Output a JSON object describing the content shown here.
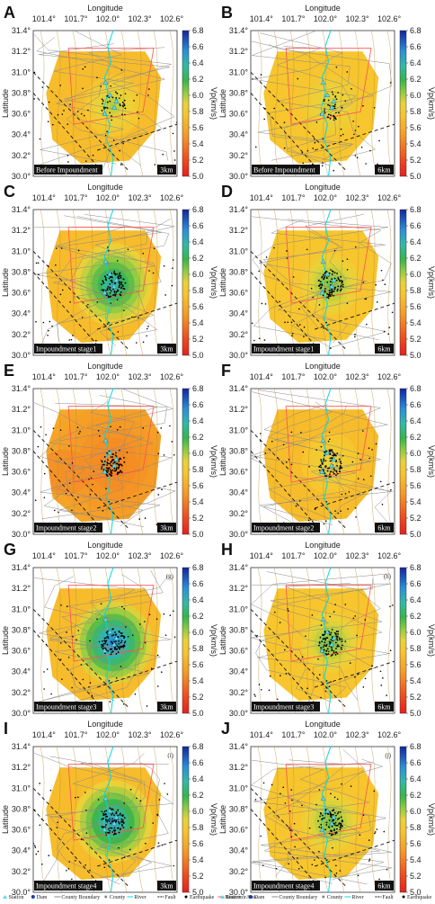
{
  "figure": {
    "x_axis_title": "Longitude",
    "y_axis_title": "Latitude",
    "colorbar_title": "Vp(km/s)",
    "colorbar_ticks": [
      "6.8",
      "6.6",
      "6.4",
      "6.2",
      "6.0",
      "5.8",
      "5.6",
      "5.4",
      "5.2",
      "5.0"
    ],
    "lon_ticks": [
      "101.4°",
      "101.7°",
      "102.0°",
      "102.3°",
      "102.6°"
    ],
    "lat_ticks": [
      "31.4°",
      "31.2°",
      "31.0°",
      "30.8°",
      "30.6°",
      "30.4°",
      "30.2°",
      "30.0°"
    ],
    "colors": {
      "low": "#e82020",
      "mid": "#f5c232",
      "green": "#35b34a",
      "high": "#1030a8",
      "river": "#00d8e8",
      "reservoir": "#ff5050"
    }
  },
  "panels": [
    {
      "letter": "A",
      "label": "Before Impoundment",
      "depth": "3km",
      "tag": ""
    },
    {
      "letter": "B",
      "label": "Before Impoundment",
      "depth": "6km",
      "tag": ""
    },
    {
      "letter": "C",
      "label": "Impoundment stage1",
      "depth": "3km",
      "tag": ""
    },
    {
      "letter": "D",
      "label": "Impoundment stage1",
      "depth": "6km",
      "tag": ""
    },
    {
      "letter": "E",
      "label": "Impoundment stage2",
      "depth": "3km",
      "tag": ""
    },
    {
      "letter": "F",
      "label": "Impoundment stage2",
      "depth": "6km",
      "tag": ""
    },
    {
      "letter": "G",
      "label": "Impoundment stage3",
      "depth": "3km",
      "tag": "(g)"
    },
    {
      "letter": "H",
      "label": "Impoundment stage3",
      "depth": "6km",
      "tag": "(h)"
    },
    {
      "letter": "I",
      "label": "Impoundment stage4",
      "depth": "3km",
      "tag": "(i)"
    },
    {
      "letter": "J",
      "label": "Impoundment stage4",
      "depth": "6km",
      "tag": "(j)"
    }
  ],
  "legend": [
    {
      "symbol": "triangle",
      "text": "Station"
    },
    {
      "symbol": "star",
      "text": "Dam"
    },
    {
      "symbol": "line-gray",
      "text": "County Boundary"
    },
    {
      "symbol": "dot-gray",
      "text": "County"
    },
    {
      "symbol": "line-cyan",
      "text": "River"
    },
    {
      "symbol": "line-dash",
      "text": "Fault"
    },
    {
      "symbol": "dot-black",
      "text": "Earthquake"
    },
    {
      "symbol": "line-red",
      "text": "ReservoirArea"
    }
  ],
  "chart_data": {
    "type": "heatmap",
    "title": "",
    "xlabel": "Longitude",
    "ylabel": "Latitude",
    "xlim": [
      101.3,
      102.65
    ],
    "ylim": [
      30.0,
      31.4
    ],
    "colorbar": {
      "label": "Vp(km/s)",
      "range": [
        5.0,
        6.8
      ]
    },
    "maps": [
      {
        "panel": "A",
        "stage": "Before Impoundment",
        "depth_km": 3,
        "background_vp": 5.7,
        "anomaly_vp": 6.0
      },
      {
        "panel": "B",
        "stage": "Before Impoundment",
        "depth_km": 6,
        "background_vp": 5.75,
        "anomaly_vp": 5.95
      },
      {
        "panel": "C",
        "stage": "Impoundment stage1",
        "depth_km": 3,
        "background_vp": 5.7,
        "anomaly_vp": 6.4
      },
      {
        "panel": "D",
        "stage": "Impoundment stage1",
        "depth_km": 6,
        "background_vp": 5.75,
        "anomaly_vp": 6.1
      },
      {
        "panel": "E",
        "stage": "Impoundment stage2",
        "depth_km": 3,
        "background_vp": 5.6,
        "anomaly_vp": 5.4
      },
      {
        "panel": "F",
        "stage": "Impoundment stage2",
        "depth_km": 6,
        "background_vp": 5.7,
        "anomaly_vp": 5.9
      },
      {
        "panel": "G",
        "stage": "Impoundment stage3",
        "depth_km": 3,
        "background_vp": 5.7,
        "anomaly_vp": 6.6
      },
      {
        "panel": "H",
        "stage": "Impoundment stage3",
        "depth_km": 6,
        "background_vp": 5.75,
        "anomaly_vp": 6.1
      },
      {
        "panel": "I",
        "stage": "Impoundment stage4",
        "depth_km": 3,
        "background_vp": 5.7,
        "anomaly_vp": 6.5
      },
      {
        "panel": "J",
        "stage": "Impoundment stage4",
        "depth_km": 6,
        "background_vp": 5.75,
        "anomaly_vp": 6.1
      }
    ]
  }
}
